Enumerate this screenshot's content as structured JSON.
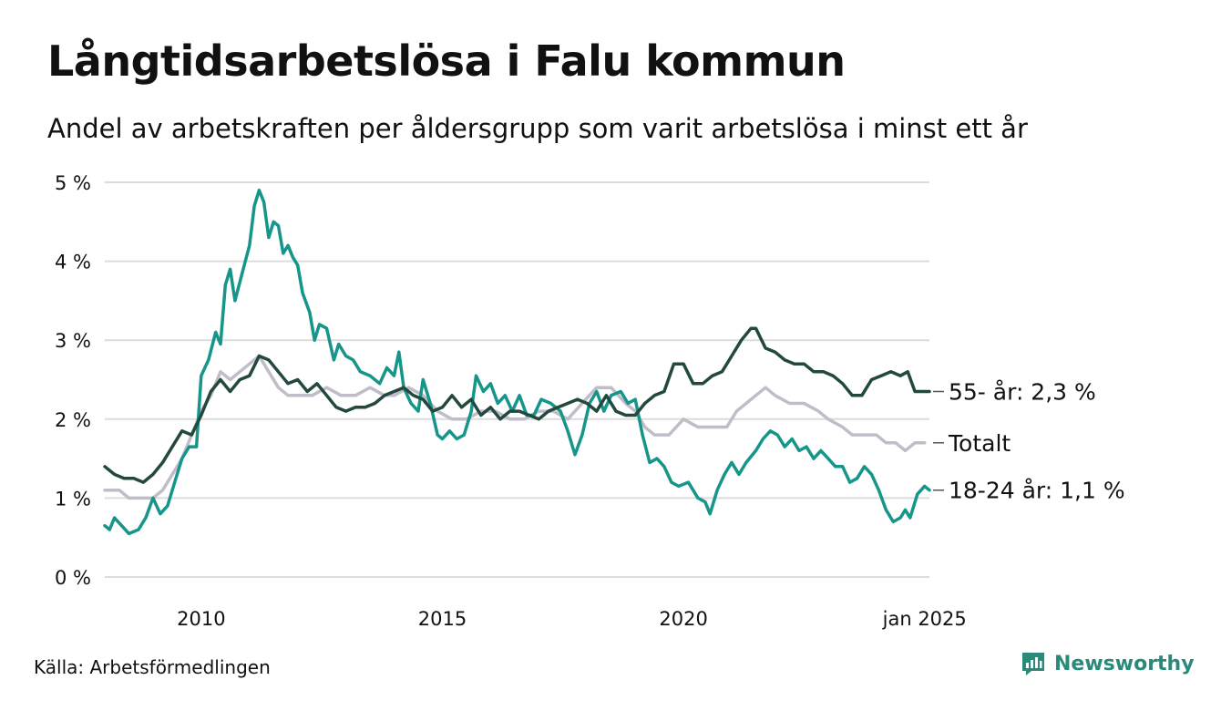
{
  "title": "Långtidsarbetslösa i Falu kommun",
  "subtitle": "Andel av arbetskraften per åldersgrupp som varit arbetslösa i minst ett år",
  "source": "Källa: Arbetsförmedlingen",
  "brand": {
    "name": "Newsworthy",
    "icon": "bar-chart-logo-icon",
    "color": "#2a8a7a"
  },
  "chart_data": {
    "type": "line",
    "x_unit": "year (decimal)",
    "xlim": [
      2008.0,
      2025.1
    ],
    "ylim": [
      0,
      5
    ],
    "grid": true,
    "y_ticks": [
      {
        "value": 0,
        "label": "0 %"
      },
      {
        "value": 1,
        "label": "1 %"
      },
      {
        "value": 2,
        "label": "2 %"
      },
      {
        "value": 3,
        "label": "3 %"
      },
      {
        "value": 4,
        "label": "4 %"
      },
      {
        "value": 5,
        "label": "5 %"
      }
    ],
    "x_ticks": [
      {
        "value": 2010,
        "label": "2010"
      },
      {
        "value": 2015,
        "label": "2015"
      },
      {
        "value": 2020,
        "label": "2020"
      },
      {
        "value": 2025,
        "label": "jan 2025"
      }
    ],
    "series": [
      {
        "name": "Totalt",
        "label": "Totalt",
        "color": "#c0bdc9",
        "points": [
          [
            2008.0,
            1.1
          ],
          [
            2008.3,
            1.1
          ],
          [
            2008.5,
            1.0
          ],
          [
            2008.8,
            1.0
          ],
          [
            2009.0,
            1.0
          ],
          [
            2009.2,
            1.1
          ],
          [
            2009.4,
            1.3
          ],
          [
            2009.6,
            1.5
          ],
          [
            2009.8,
            1.8
          ],
          [
            2010.0,
            2.1
          ],
          [
            2010.2,
            2.3
          ],
          [
            2010.4,
            2.6
          ],
          [
            2010.6,
            2.5
          ],
          [
            2010.8,
            2.6
          ],
          [
            2011.0,
            2.7
          ],
          [
            2011.2,
            2.8
          ],
          [
            2011.4,
            2.6
          ],
          [
            2011.6,
            2.4
          ],
          [
            2011.8,
            2.3
          ],
          [
            2012.0,
            2.3
          ],
          [
            2012.3,
            2.3
          ],
          [
            2012.6,
            2.4
          ],
          [
            2012.9,
            2.3
          ],
          [
            2013.2,
            2.3
          ],
          [
            2013.5,
            2.4
          ],
          [
            2013.8,
            2.3
          ],
          [
            2014.0,
            2.3
          ],
          [
            2014.3,
            2.4
          ],
          [
            2014.6,
            2.3
          ],
          [
            2014.9,
            2.1
          ],
          [
            2015.2,
            2.0
          ],
          [
            2015.5,
            2.0
          ],
          [
            2015.8,
            2.1
          ],
          [
            2016.1,
            2.1
          ],
          [
            2016.4,
            2.0
          ],
          [
            2016.7,
            2.0
          ],
          [
            2017.0,
            2.1
          ],
          [
            2017.3,
            2.1
          ],
          [
            2017.6,
            2.0
          ],
          [
            2017.9,
            2.2
          ],
          [
            2018.2,
            2.4
          ],
          [
            2018.5,
            2.4
          ],
          [
            2018.8,
            2.2
          ],
          [
            2019.0,
            2.1
          ],
          [
            2019.2,
            1.9
          ],
          [
            2019.4,
            1.8
          ],
          [
            2019.7,
            1.8
          ],
          [
            2020.0,
            2.0
          ],
          [
            2020.3,
            1.9
          ],
          [
            2020.6,
            1.9
          ],
          [
            2020.9,
            1.9
          ],
          [
            2021.1,
            2.1
          ],
          [
            2021.3,
            2.2
          ],
          [
            2021.5,
            2.3
          ],
          [
            2021.7,
            2.4
          ],
          [
            2021.9,
            2.3
          ],
          [
            2022.2,
            2.2
          ],
          [
            2022.5,
            2.2
          ],
          [
            2022.8,
            2.1
          ],
          [
            2023.0,
            2.0
          ],
          [
            2023.3,
            1.9
          ],
          [
            2023.5,
            1.8
          ],
          [
            2023.8,
            1.8
          ],
          [
            2024.0,
            1.8
          ],
          [
            2024.2,
            1.7
          ],
          [
            2024.4,
            1.7
          ],
          [
            2024.6,
            1.6
          ],
          [
            2024.8,
            1.7
          ],
          [
            2025.0,
            1.7
          ]
        ]
      },
      {
        "name": "18-24 år",
        "label": "18-24 år: 1,1 %",
        "color": "#16958a",
        "points": [
          [
            2008.0,
            0.65
          ],
          [
            2008.1,
            0.6
          ],
          [
            2008.2,
            0.75
          ],
          [
            2008.35,
            0.65
          ],
          [
            2008.5,
            0.55
          ],
          [
            2008.7,
            0.6
          ],
          [
            2008.85,
            0.75
          ],
          [
            2009.0,
            1.0
          ],
          [
            2009.15,
            0.8
          ],
          [
            2009.3,
            0.9
          ],
          [
            2009.45,
            1.2
          ],
          [
            2009.6,
            1.5
          ],
          [
            2009.75,
            1.65
          ],
          [
            2009.9,
            1.65
          ],
          [
            2010.0,
            2.55
          ],
          [
            2010.15,
            2.75
          ],
          [
            2010.3,
            3.1
          ],
          [
            2010.4,
            2.95
          ],
          [
            2010.5,
            3.7
          ],
          [
            2010.6,
            3.9
          ],
          [
            2010.7,
            3.5
          ],
          [
            2010.85,
            3.85
          ],
          [
            2011.0,
            4.2
          ],
          [
            2011.1,
            4.7
          ],
          [
            2011.2,
            4.9
          ],
          [
            2011.3,
            4.75
          ],
          [
            2011.4,
            4.3
          ],
          [
            2011.5,
            4.5
          ],
          [
            2011.6,
            4.45
          ],
          [
            2011.7,
            4.1
          ],
          [
            2011.8,
            4.2
          ],
          [
            2011.9,
            4.05
          ],
          [
            2012.0,
            3.95
          ],
          [
            2012.1,
            3.6
          ],
          [
            2012.25,
            3.35
          ],
          [
            2012.35,
            3.0
          ],
          [
            2012.45,
            3.2
          ],
          [
            2012.6,
            3.15
          ],
          [
            2012.75,
            2.75
          ],
          [
            2012.85,
            2.95
          ],
          [
            2013.0,
            2.8
          ],
          [
            2013.15,
            2.75
          ],
          [
            2013.3,
            2.6
          ],
          [
            2013.5,
            2.55
          ],
          [
            2013.7,
            2.45
          ],
          [
            2013.85,
            2.65
          ],
          [
            2014.0,
            2.55
          ],
          [
            2014.1,
            2.85
          ],
          [
            2014.2,
            2.4
          ],
          [
            2014.35,
            2.2
          ],
          [
            2014.5,
            2.1
          ],
          [
            2014.6,
            2.5
          ],
          [
            2014.75,
            2.2
          ],
          [
            2014.9,
            1.8
          ],
          [
            2015.0,
            1.75
          ],
          [
            2015.15,
            1.85
          ],
          [
            2015.3,
            1.75
          ],
          [
            2015.45,
            1.8
          ],
          [
            2015.6,
            2.1
          ],
          [
            2015.7,
            2.55
          ],
          [
            2015.85,
            2.35
          ],
          [
            2016.0,
            2.45
          ],
          [
            2016.15,
            2.2
          ],
          [
            2016.3,
            2.3
          ],
          [
            2016.45,
            2.1
          ],
          [
            2016.6,
            2.3
          ],
          [
            2016.75,
            2.05
          ],
          [
            2016.9,
            2.05
          ],
          [
            2017.05,
            2.25
          ],
          [
            2017.25,
            2.2
          ],
          [
            2017.45,
            2.1
          ],
          [
            2017.6,
            1.85
          ],
          [
            2017.75,
            1.55
          ],
          [
            2017.9,
            1.8
          ],
          [
            2018.05,
            2.2
          ],
          [
            2018.2,
            2.35
          ],
          [
            2018.35,
            2.1
          ],
          [
            2018.5,
            2.3
          ],
          [
            2018.7,
            2.35
          ],
          [
            2018.85,
            2.2
          ],
          [
            2019.0,
            2.25
          ],
          [
            2019.15,
            1.8
          ],
          [
            2019.3,
            1.45
          ],
          [
            2019.45,
            1.5
          ],
          [
            2019.6,
            1.4
          ],
          [
            2019.75,
            1.2
          ],
          [
            2019.9,
            1.15
          ],
          [
            2020.1,
            1.2
          ],
          [
            2020.3,
            1.0
          ],
          [
            2020.45,
            0.95
          ],
          [
            2020.55,
            0.8
          ],
          [
            2020.7,
            1.1
          ],
          [
            2020.85,
            1.3
          ],
          [
            2021.0,
            1.45
          ],
          [
            2021.15,
            1.3
          ],
          [
            2021.3,
            1.45
          ],
          [
            2021.5,
            1.6
          ],
          [
            2021.65,
            1.75
          ],
          [
            2021.8,
            1.85
          ],
          [
            2021.95,
            1.8
          ],
          [
            2022.1,
            1.65
          ],
          [
            2022.25,
            1.75
          ],
          [
            2022.4,
            1.6
          ],
          [
            2022.55,
            1.65
          ],
          [
            2022.7,
            1.5
          ],
          [
            2022.85,
            1.6
          ],
          [
            2023.0,
            1.5
          ],
          [
            2023.15,
            1.4
          ],
          [
            2023.3,
            1.4
          ],
          [
            2023.45,
            1.2
          ],
          [
            2023.6,
            1.25
          ],
          [
            2023.75,
            1.4
          ],
          [
            2023.9,
            1.3
          ],
          [
            2024.05,
            1.1
          ],
          [
            2024.2,
            0.85
          ],
          [
            2024.35,
            0.7
          ],
          [
            2024.5,
            0.75
          ],
          [
            2024.6,
            0.85
          ],
          [
            2024.7,
            0.75
          ],
          [
            2024.85,
            1.05
          ],
          [
            2025.0,
            1.15
          ],
          [
            2025.1,
            1.1
          ]
        ]
      },
      {
        "name": "55- år",
        "label": "55- år: 2,3 %",
        "color": "#23493f",
        "points": [
          [
            2008.0,
            1.4
          ],
          [
            2008.2,
            1.3
          ],
          [
            2008.4,
            1.25
          ],
          [
            2008.6,
            1.25
          ],
          [
            2008.8,
            1.2
          ],
          [
            2009.0,
            1.3
          ],
          [
            2009.2,
            1.45
          ],
          [
            2009.4,
            1.65
          ],
          [
            2009.6,
            1.85
          ],
          [
            2009.8,
            1.8
          ],
          [
            2010.0,
            2.05
          ],
          [
            2010.2,
            2.35
          ],
          [
            2010.4,
            2.5
          ],
          [
            2010.6,
            2.35
          ],
          [
            2010.8,
            2.5
          ],
          [
            2011.0,
            2.55
          ],
          [
            2011.2,
            2.8
          ],
          [
            2011.4,
            2.75
          ],
          [
            2011.6,
            2.6
          ],
          [
            2011.8,
            2.45
          ],
          [
            2012.0,
            2.5
          ],
          [
            2012.2,
            2.35
          ],
          [
            2012.4,
            2.45
          ],
          [
            2012.6,
            2.3
          ],
          [
            2012.8,
            2.15
          ],
          [
            2013.0,
            2.1
          ],
          [
            2013.2,
            2.15
          ],
          [
            2013.4,
            2.15
          ],
          [
            2013.6,
            2.2
          ],
          [
            2013.8,
            2.3
          ],
          [
            2014.0,
            2.35
          ],
          [
            2014.2,
            2.4
          ],
          [
            2014.4,
            2.3
          ],
          [
            2014.6,
            2.25
          ],
          [
            2014.8,
            2.1
          ],
          [
            2015.0,
            2.15
          ],
          [
            2015.2,
            2.3
          ],
          [
            2015.4,
            2.15
          ],
          [
            2015.6,
            2.25
          ],
          [
            2015.8,
            2.05
          ],
          [
            2016.0,
            2.15
          ],
          [
            2016.2,
            2.0
          ],
          [
            2016.4,
            2.1
          ],
          [
            2016.6,
            2.1
          ],
          [
            2016.8,
            2.05
          ],
          [
            2017.0,
            2.0
          ],
          [
            2017.2,
            2.1
          ],
          [
            2017.4,
            2.15
          ],
          [
            2017.6,
            2.2
          ],
          [
            2017.8,
            2.25
          ],
          [
            2018.0,
            2.2
          ],
          [
            2018.2,
            2.1
          ],
          [
            2018.4,
            2.3
          ],
          [
            2018.6,
            2.1
          ],
          [
            2018.8,
            2.05
          ],
          [
            2019.0,
            2.05
          ],
          [
            2019.2,
            2.2
          ],
          [
            2019.4,
            2.3
          ],
          [
            2019.6,
            2.35
          ],
          [
            2019.8,
            2.7
          ],
          [
            2020.0,
            2.7
          ],
          [
            2020.2,
            2.45
          ],
          [
            2020.4,
            2.45
          ],
          [
            2020.6,
            2.55
          ],
          [
            2020.8,
            2.6
          ],
          [
            2021.0,
            2.8
          ],
          [
            2021.2,
            3.0
          ],
          [
            2021.4,
            3.15
          ],
          [
            2021.5,
            3.15
          ],
          [
            2021.7,
            2.9
          ],
          [
            2021.9,
            2.85
          ],
          [
            2022.1,
            2.75
          ],
          [
            2022.3,
            2.7
          ],
          [
            2022.5,
            2.7
          ],
          [
            2022.7,
            2.6
          ],
          [
            2022.9,
            2.6
          ],
          [
            2023.1,
            2.55
          ],
          [
            2023.3,
            2.45
          ],
          [
            2023.5,
            2.3
          ],
          [
            2023.7,
            2.3
          ],
          [
            2023.9,
            2.5
          ],
          [
            2024.1,
            2.55
          ],
          [
            2024.3,
            2.6
          ],
          [
            2024.5,
            2.55
          ],
          [
            2024.65,
            2.6
          ],
          [
            2024.8,
            2.35
          ],
          [
            2025.0,
            2.35
          ],
          [
            2025.1,
            2.35
          ]
        ]
      }
    ]
  }
}
